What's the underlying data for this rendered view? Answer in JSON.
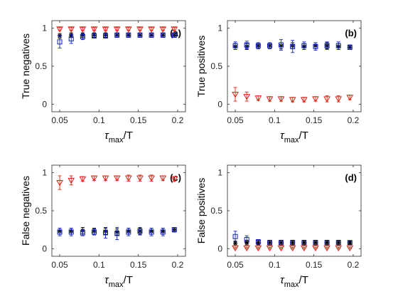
{
  "chart_data": [
    {
      "type": "scatter",
      "panel_label": "(a)",
      "ylabel": "True negatives",
      "xlabel_main": "τ",
      "xlabel_sub": "max",
      "xlabel_tail": "/T",
      "xlim": [
        0.04,
        0.21
      ],
      "ylim": [
        -0.1,
        1.1
      ],
      "x_ticks": [
        0.05,
        0.1,
        0.15,
        0.2
      ],
      "x_tick_labels": [
        "0.05",
        "0.1",
        "0.15",
        "0.2"
      ],
      "y_ticks": [
        0,
        0.5,
        1
      ],
      "y_tick_labels": [
        "0",
        "0.5",
        "1"
      ],
      "x": [
        0.05,
        0.0646,
        0.0792,
        0.0938,
        0.1083,
        0.1229,
        0.1375,
        0.1521,
        0.1667,
        0.1813,
        0.1958
      ],
      "series": [
        {
          "marker": "triangle-down",
          "values": [
            0.99,
            0.99,
            0.99,
            0.99,
            0.99,
            0.99,
            0.99,
            0.99,
            0.99,
            0.99,
            0.99
          ],
          "errors": [
            0.02,
            0.02,
            0.02,
            0.02,
            0.02,
            0.02,
            0.02,
            0.02,
            0.02,
            0.02,
            0.02
          ]
        },
        {
          "marker": "star",
          "values": [
            0.9,
            0.91,
            0.91,
            0.91,
            0.91,
            0.91,
            0.91,
            0.91,
            0.91,
            0.91,
            0.91
          ],
          "errors": [
            0.03,
            0.03,
            0.03,
            0.03,
            0.03,
            0.03,
            0.03,
            0.03,
            0.03,
            0.03,
            0.03
          ]
        },
        {
          "marker": "square",
          "values": [
            0.82,
            0.86,
            0.89,
            0.9,
            0.9,
            0.91,
            0.91,
            0.91,
            0.91,
            0.91,
            0.91
          ],
          "errors": [
            0.08,
            0.06,
            0.04,
            0.03,
            0.03,
            0.03,
            0.03,
            0.03,
            0.03,
            0.03,
            0.03
          ]
        }
      ]
    },
    {
      "type": "scatter",
      "panel_label": "(b)",
      "ylabel": "True positives",
      "xlabel_main": "τ",
      "xlabel_sub": "max",
      "xlabel_tail": "/T",
      "xlim": [
        0.04,
        0.21
      ],
      "ylim": [
        -0.1,
        1.1
      ],
      "x_ticks": [
        0.05,
        0.1,
        0.15,
        0.2
      ],
      "x_tick_labels": [
        "0.05",
        "0.1",
        "0.15",
        "0.2"
      ],
      "y_ticks": [
        0,
        0.5,
        1
      ],
      "y_tick_labels": [
        "0",
        "0.5",
        "1"
      ],
      "x": [
        0.05,
        0.0646,
        0.0792,
        0.0938,
        0.1083,
        0.1229,
        0.1375,
        0.1521,
        0.1667,
        0.1813,
        0.1958
      ],
      "series": [
        {
          "marker": "star",
          "values": [
            0.76,
            0.76,
            0.77,
            0.77,
            0.77,
            0.77,
            0.76,
            0.77,
            0.77,
            0.76,
            0.75
          ],
          "errors": [
            0.04,
            0.04,
            0.04,
            0.04,
            0.04,
            0.04,
            0.04,
            0.04,
            0.04,
            0.04,
            0.03
          ]
        },
        {
          "marker": "square",
          "values": [
            0.77,
            0.78,
            0.77,
            0.77,
            0.78,
            0.76,
            0.77,
            0.76,
            0.77,
            0.77,
            0.75
          ],
          "errors": [
            0.05,
            0.05,
            0.04,
            0.04,
            0.07,
            0.08,
            0.05,
            0.05,
            0.05,
            0.05,
            0.03
          ]
        },
        {
          "marker": "triangle-down",
          "values": [
            0.13,
            0.1,
            0.08,
            0.07,
            0.07,
            0.06,
            0.06,
            0.07,
            0.07,
            0.07,
            0.09
          ],
          "errors": [
            0.09,
            0.06,
            0.03,
            0.03,
            0.03,
            0.03,
            0.03,
            0.03,
            0.04,
            0.04,
            0.03
          ]
        }
      ]
    },
    {
      "type": "scatter",
      "panel_label": "(c)",
      "ylabel": "False negatives",
      "xlabel_main": "τ",
      "xlabel_sub": "max",
      "xlabel_tail": "/T",
      "xlim": [
        0.04,
        0.21
      ],
      "ylim": [
        -0.1,
        1.1
      ],
      "x_ticks": [
        0.05,
        0.1,
        0.15,
        0.2
      ],
      "x_tick_labels": [
        "0.05",
        "0.1",
        "0.15",
        "0.2"
      ],
      "y_ticks": [
        0,
        0.5,
        1
      ],
      "y_tick_labels": [
        "0",
        "0.5",
        "1"
      ],
      "x": [
        0.05,
        0.0646,
        0.0792,
        0.0938,
        0.1083,
        0.1229,
        0.1375,
        0.1521,
        0.1667,
        0.1813,
        0.1958
      ],
      "series": [
        {
          "marker": "triangle-down",
          "values": [
            0.87,
            0.9,
            0.92,
            0.93,
            0.93,
            0.93,
            0.93,
            0.93,
            0.93,
            0.93,
            0.92
          ],
          "errors": [
            0.09,
            0.06,
            0.03,
            0.03,
            0.03,
            0.03,
            0.04,
            0.04,
            0.04,
            0.03,
            0.03
          ]
        },
        {
          "marker": "star",
          "values": [
            0.23,
            0.23,
            0.24,
            0.23,
            0.23,
            0.22,
            0.23,
            0.23,
            0.23,
            0.23,
            0.25
          ],
          "errors": [
            0.04,
            0.04,
            0.04,
            0.04,
            0.04,
            0.04,
            0.04,
            0.04,
            0.04,
            0.04,
            0.03
          ]
        },
        {
          "marker": "square",
          "values": [
            0.22,
            0.22,
            0.21,
            0.22,
            0.21,
            0.2,
            0.22,
            0.23,
            0.22,
            0.22,
            0.25
          ],
          "errors": [
            0.05,
            0.05,
            0.04,
            0.04,
            0.07,
            0.08,
            0.05,
            0.05,
            0.05,
            0.05,
            0.03
          ]
        }
      ]
    },
    {
      "type": "scatter",
      "panel_label": "(d)",
      "ylabel": "False positives",
      "xlabel_main": "τ",
      "xlabel_sub": "max",
      "xlabel_tail": "/T",
      "xlim": [
        0.04,
        0.21
      ],
      "ylim": [
        -0.1,
        1.1
      ],
      "x_ticks": [
        0.05,
        0.1,
        0.15,
        0.2
      ],
      "x_tick_labels": [
        "0.05",
        "0.1",
        "0.15",
        "0.2"
      ],
      "y_ticks": [
        0,
        0.5,
        1
      ],
      "y_tick_labels": [
        "0",
        "0.5",
        "1"
      ],
      "x": [
        0.05,
        0.0646,
        0.0792,
        0.0938,
        0.1083,
        0.1229,
        0.1375,
        0.1521,
        0.1667,
        0.1813,
        0.1958
      ],
      "series": [
        {
          "marker": "square",
          "values": [
            0.16,
            0.12,
            0.09,
            0.08,
            0.08,
            0.08,
            0.08,
            0.08,
            0.08,
            0.08,
            0.08
          ],
          "errors": [
            0.07,
            0.05,
            0.03,
            0.03,
            0.03,
            0.03,
            0.03,
            0.03,
            0.03,
            0.03,
            0.02
          ]
        },
        {
          "marker": "star",
          "values": [
            0.07,
            0.08,
            0.08,
            0.08,
            0.08,
            0.08,
            0.08,
            0.08,
            0.08,
            0.08,
            0.08
          ],
          "errors": [
            0.03,
            0.03,
            0.03,
            0.03,
            0.03,
            0.03,
            0.03,
            0.03,
            0.03,
            0.03,
            0.02
          ]
        },
        {
          "marker": "triangle-down",
          "values": [
            0.01,
            0.01,
            0.01,
            0.01,
            0.01,
            0.01,
            0.01,
            0.01,
            0.01,
            0.01,
            0.01
          ],
          "errors": [
            0.01,
            0.01,
            0.01,
            0.01,
            0.01,
            0.01,
            0.01,
            0.01,
            0.01,
            0.01,
            0.01
          ]
        }
      ]
    }
  ],
  "colors": {
    "triangle-down": "#dd2211",
    "star": "#000000",
    "square": "#1122bb",
    "axis": "#262626",
    "background": "#ffffff"
  }
}
